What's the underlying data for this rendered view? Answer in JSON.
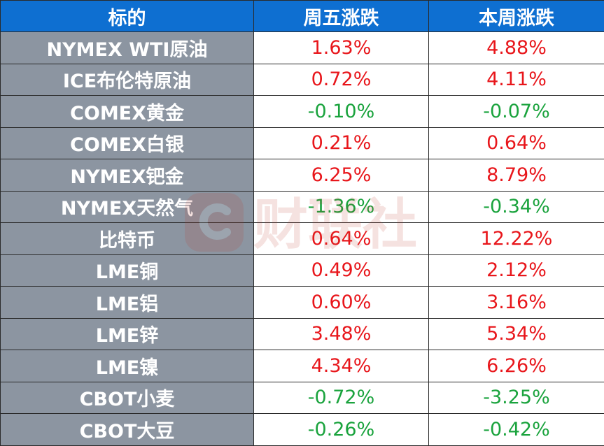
{
  "headers": [
    "标的",
    "周五涨跌",
    "本周涨跌"
  ],
  "colors": {
    "header_bg": "#0e6fd1",
    "label_bg": "#8c95a1",
    "up": "#e8161b",
    "down": "#1aa33d"
  },
  "watermark": {
    "text": "财联社",
    "icon": "cls-logo-icon"
  },
  "rows": [
    {
      "name": "NYMEX WTI原油",
      "fri": "1.63%",
      "week": "4.88%"
    },
    {
      "name": "ICE布伦特原油",
      "fri": "0.72%",
      "week": "4.11%"
    },
    {
      "name": "COMEX黄金",
      "fri": "-0.10%",
      "week": "-0.07%"
    },
    {
      "name": "COMEX白银",
      "fri": "0.21%",
      "week": "0.64%"
    },
    {
      "name": "NYMEX钯金",
      "fri": "6.25%",
      "week": "8.79%"
    },
    {
      "name": "NYMEX天然气",
      "fri": "-1.36%",
      "week": "-0.34%"
    },
    {
      "name": "比特币",
      "fri": "0.64%",
      "week": "12.22%"
    },
    {
      "name": "LME铜",
      "fri": "0.49%",
      "week": "2.12%"
    },
    {
      "name": "LME铝",
      "fri": "0.60%",
      "week": "3.16%"
    },
    {
      "name": "LME锌",
      "fri": "3.48%",
      "week": "5.34%"
    },
    {
      "name": "LME镍",
      "fri": "4.34%",
      "week": "6.26%"
    },
    {
      "name": "CBOT小麦",
      "fri": "-0.72%",
      "week": "-3.25%"
    },
    {
      "name": "CBOT大豆",
      "fri": "-0.26%",
      "week": "-0.42%"
    }
  ]
}
